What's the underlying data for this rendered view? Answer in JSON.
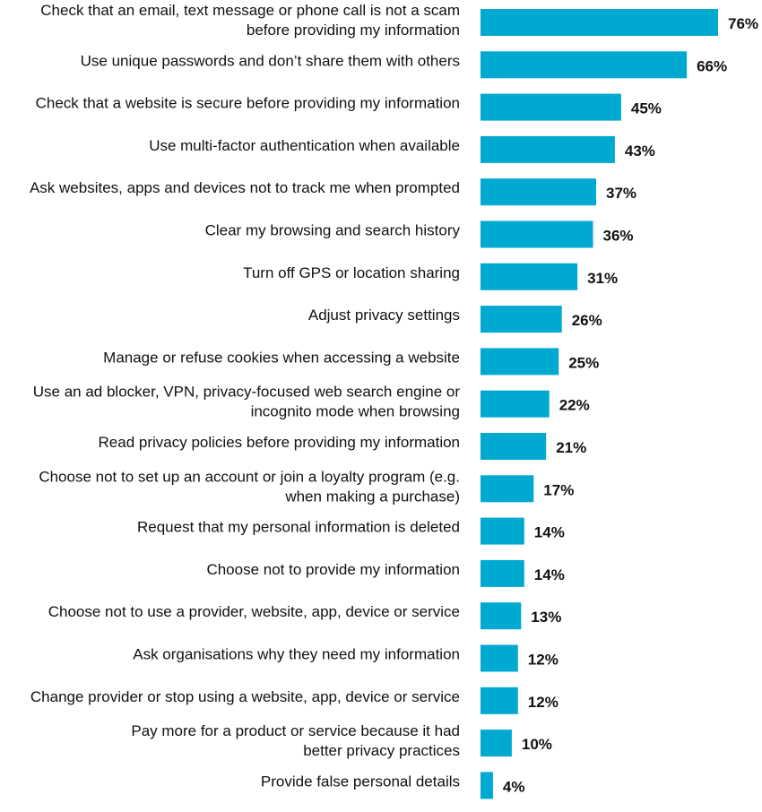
{
  "chart_data": {
    "type": "bar",
    "orientation": "horizontal",
    "title": "",
    "xlabel": "",
    "ylabel": "",
    "grid": false,
    "bar_color": "#00a9d0",
    "value_suffix": "%",
    "xlim": [
      0,
      76
    ],
    "categories": [
      [
        "Check that an email, text message or phone call is not a scam",
        "before providing my information"
      ],
      [
        "Use unique passwords and don’t share them with others"
      ],
      [
        "Check that a website is secure before providing my information"
      ],
      [
        "Use multi-factor authentication when available"
      ],
      [
        "Ask websites, apps and devices not to track me when prompted"
      ],
      [
        "Clear my browsing and search history"
      ],
      [
        "Turn off GPS or location sharing"
      ],
      [
        "Adjust privacy settings"
      ],
      [
        "Manage or refuse cookies when accessing a website"
      ],
      [
        "Use an ad blocker, VPN, privacy-focused web search engine or",
        "incognito mode when browsing"
      ],
      [
        "Read privacy policies before providing my information"
      ],
      [
        "Choose not to set up an account or join a loyalty program (e.g.",
        "when making a purchase)"
      ],
      [
        "Request that my personal information is deleted"
      ],
      [
        "Choose not to provide my information"
      ],
      [
        "Choose not to use a provider, website, app, device or service"
      ],
      [
        "Ask organisations why they need my information"
      ],
      [
        "Change provider or stop using a website, app, device or service"
      ],
      [
        "Pay more for a product or service because it had",
        "better privacy practices"
      ],
      [
        "Provide false personal details"
      ]
    ],
    "values": [
      76,
      66,
      45,
      43,
      37,
      36,
      31,
      26,
      25,
      22,
      21,
      17,
      14,
      14,
      13,
      12,
      12,
      10,
      4
    ],
    "value_labels": [
      "76%",
      "66%",
      "45%",
      "43%",
      "37%",
      "36%",
      "31%",
      "26%",
      "25%",
      "22%",
      "21%",
      "17%",
      "14%",
      "14%",
      "13%",
      "12%",
      "12%",
      "10%",
      "4%"
    ]
  }
}
